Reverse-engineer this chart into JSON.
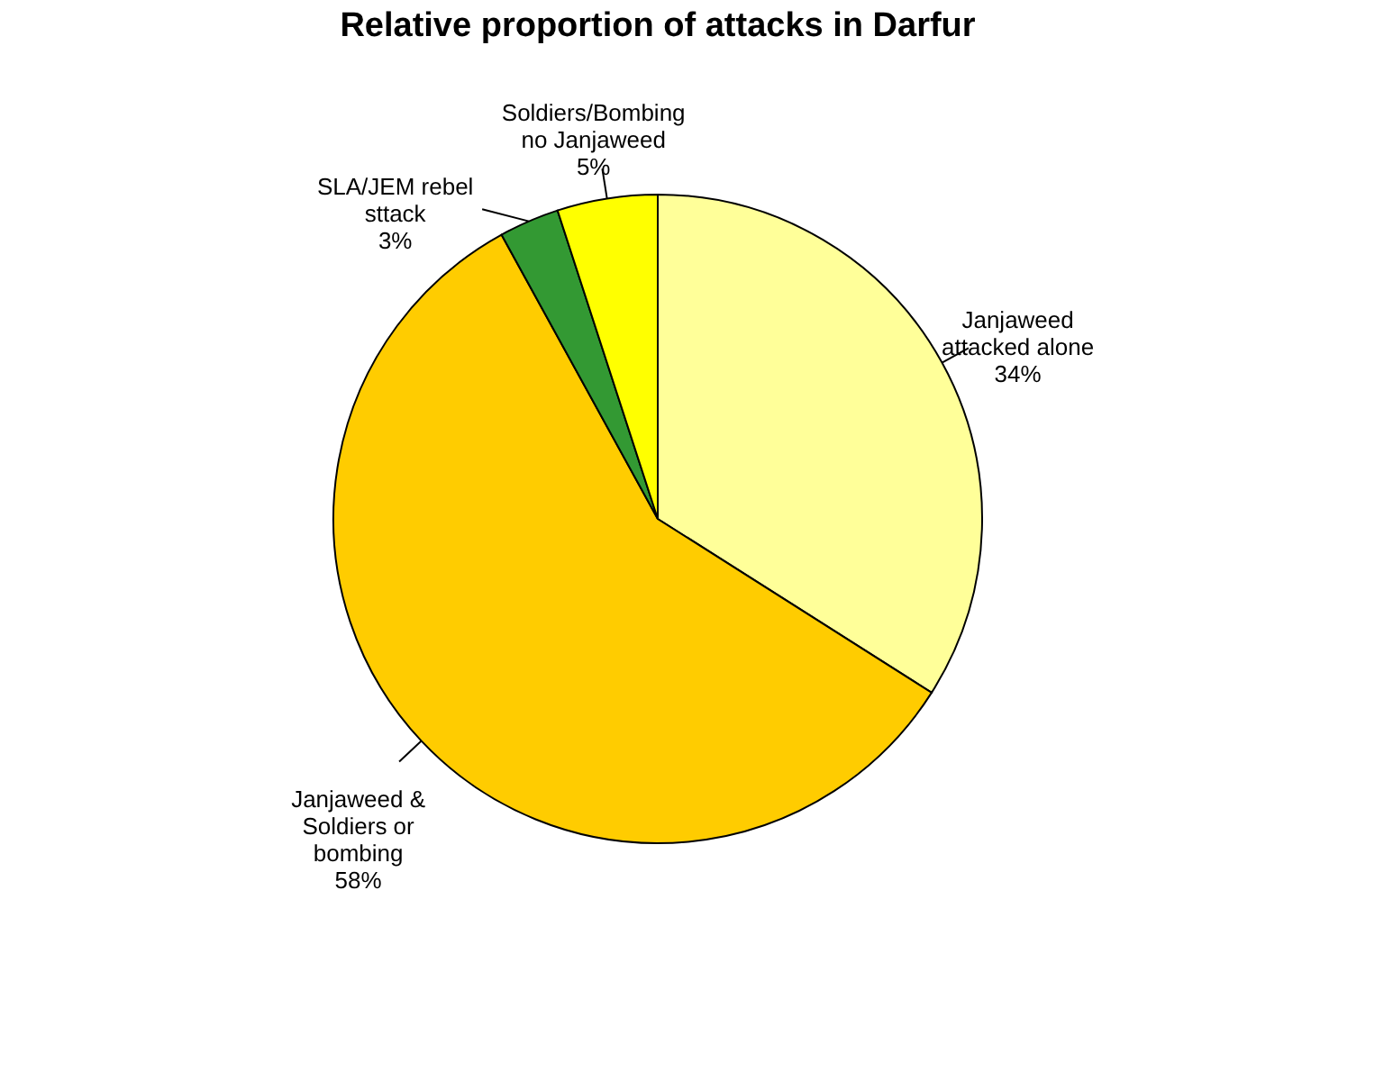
{
  "chart_data": {
    "type": "pie",
    "title": "Relative proportion of attacks in Darfur",
    "categories": [
      "Janjaweed attacked alone",
      "Janjaweed & Soldiers or bombing",
      "SLA/JEM rebel sttack",
      "Soldiers/Bombing no Janjaweed"
    ],
    "values": [
      34,
      58,
      3,
      5
    ],
    "value_labels": [
      "34%",
      "58%",
      "3%",
      "5%"
    ],
    "colors": [
      "#ffff99",
      "#ffcc00",
      "#339933",
      "#ffff00"
    ],
    "legend": false
  }
}
